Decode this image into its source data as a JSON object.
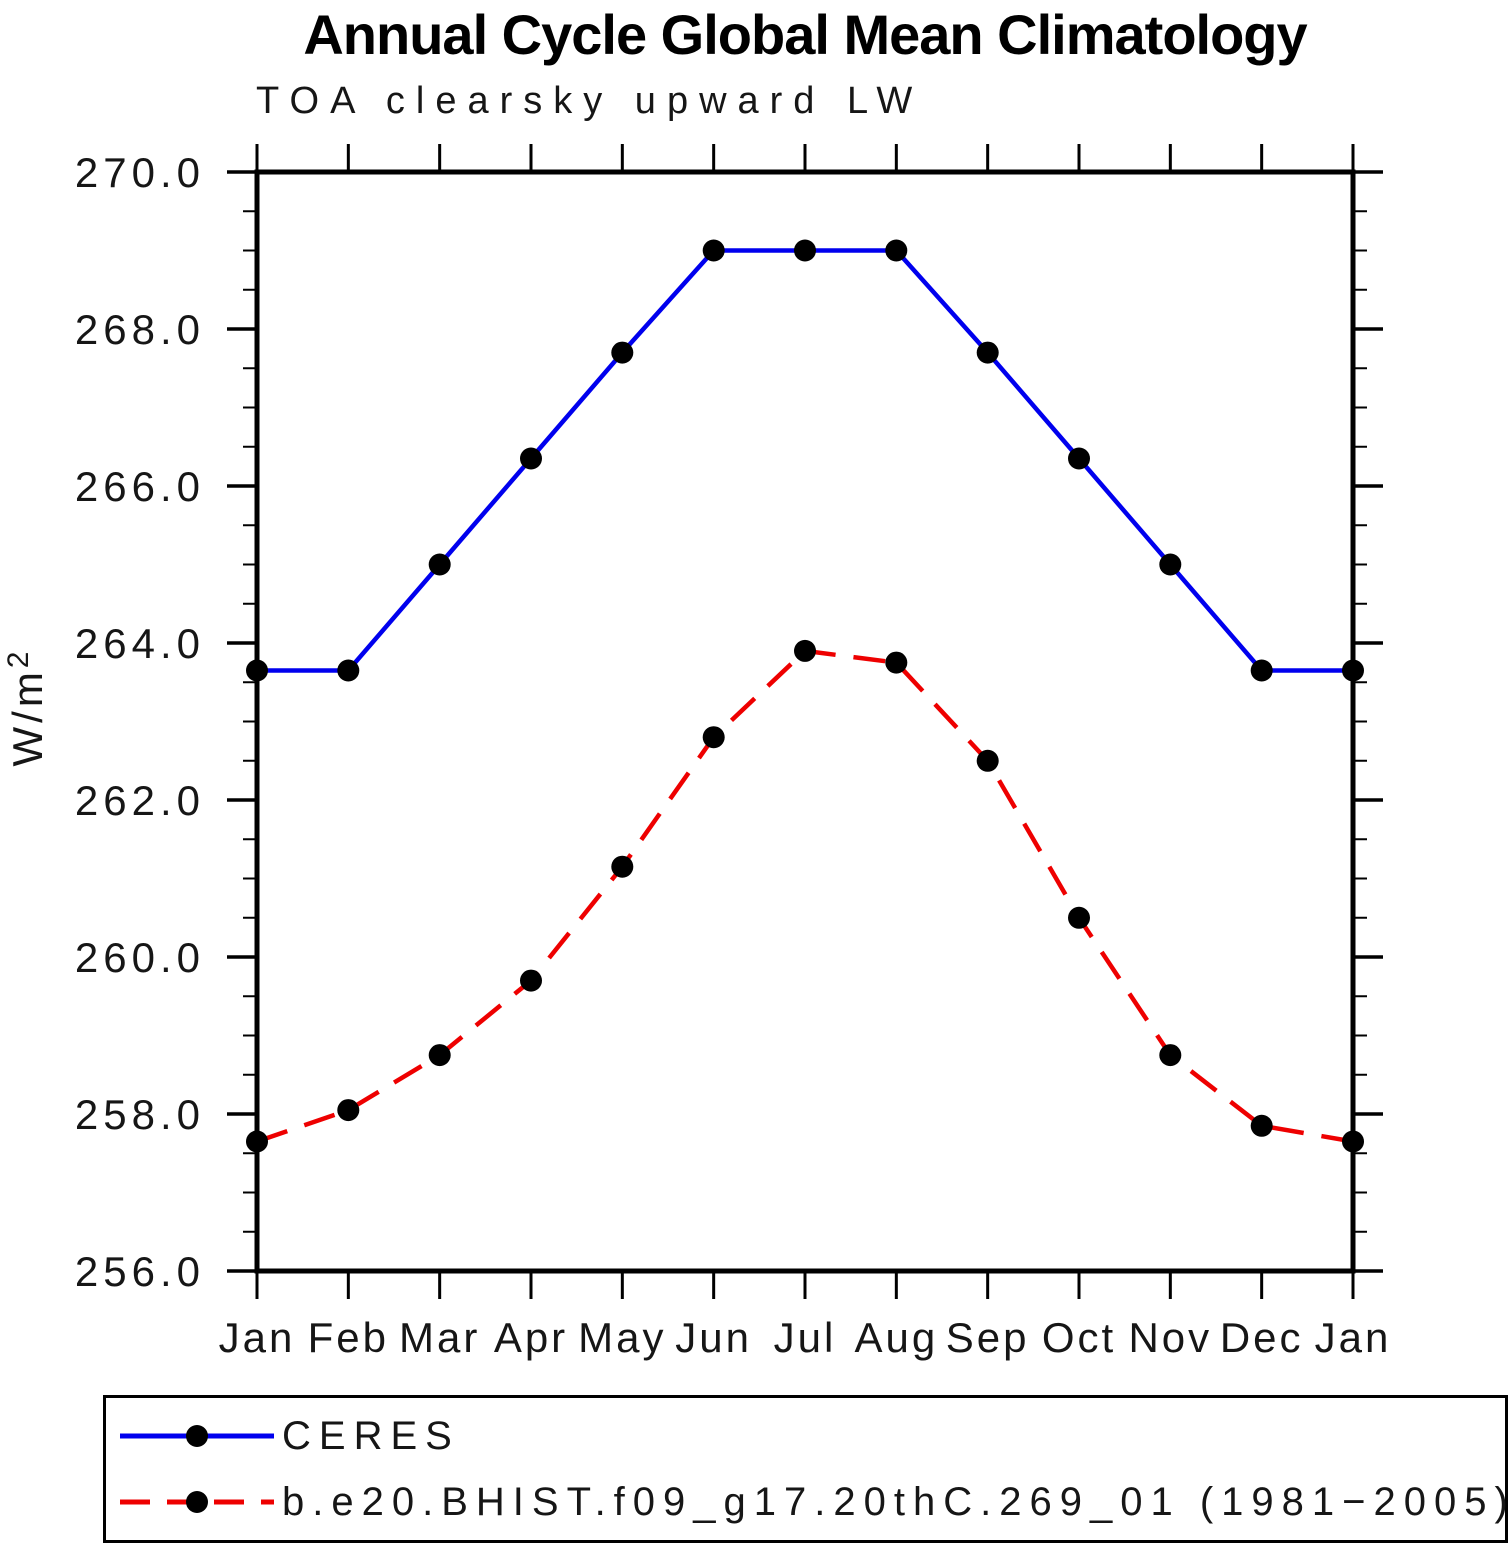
{
  "title": "Annual Cycle Global Mean Climatology",
  "subtitle": "TOA clearsky upward LW",
  "ylabel": "W/m",
  "ylabel_exp": "2",
  "chart_data": {
    "type": "line",
    "categories": [
      "Jan",
      "Feb",
      "Mar",
      "Apr",
      "May",
      "Jun",
      "Jul",
      "Aug",
      "Sep",
      "Oct",
      "Nov",
      "Dec",
      "Jan"
    ],
    "series": [
      {
        "name": "CERES",
        "color": "#0000ee",
        "style": "solid",
        "marker": "circle",
        "marker_color": "#000000",
        "values": [
          263.65,
          263.65,
          265.0,
          266.35,
          267.7,
          269.0,
          269.0,
          269.0,
          267.7,
          266.35,
          265.0,
          263.65,
          263.65
        ]
      },
      {
        "name": "b.e20.BHIST.f09_g17.20thC.269_01 (1981−2005)",
        "color": "#ee0000",
        "style": "dashed",
        "marker": "circle",
        "marker_color": "#000000",
        "values": [
          257.65,
          258.05,
          258.75,
          259.7,
          261.15,
          262.8,
          263.9,
          263.75,
          262.5,
          260.5,
          258.75,
          257.85,
          257.65
        ]
      }
    ],
    "xlabel": "",
    "ylabel": "W/m2",
    "ylim": [
      256.0,
      270.0
    ],
    "ytick_major": 2.0,
    "ytick_minor": 0.5,
    "ytick_labels": [
      "256.0",
      "258.0",
      "260.0",
      "262.0",
      "264.0",
      "266.0",
      "268.0",
      "270.0"
    ],
    "grid": false,
    "legend_position": "bottom"
  }
}
